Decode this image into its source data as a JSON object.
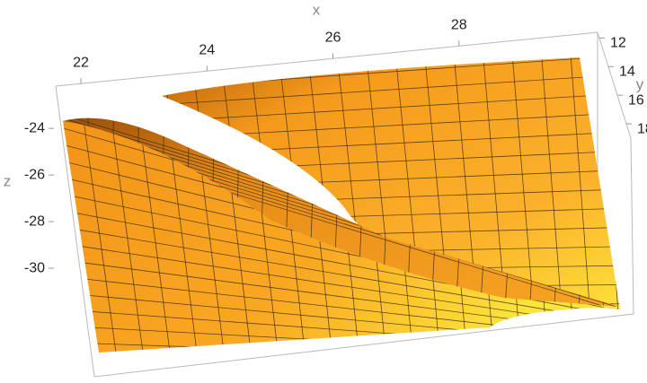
{
  "chart_data": {
    "type": "surface3d",
    "x_label": "x",
    "y_label": "y",
    "z_label": "z",
    "xlim": [
      21.6,
      30.2
    ],
    "xticks": [
      22,
      24,
      26,
      28
    ],
    "ylim": [
      11.6,
      19
    ],
    "yticks": [
      12,
      14,
      16,
      18
    ],
    "zlim": [
      -31.5,
      -22.8
    ],
    "zticks": [
      -24,
      -26,
      -28,
      -30
    ],
    "color": "#f7a31c"
  }
}
